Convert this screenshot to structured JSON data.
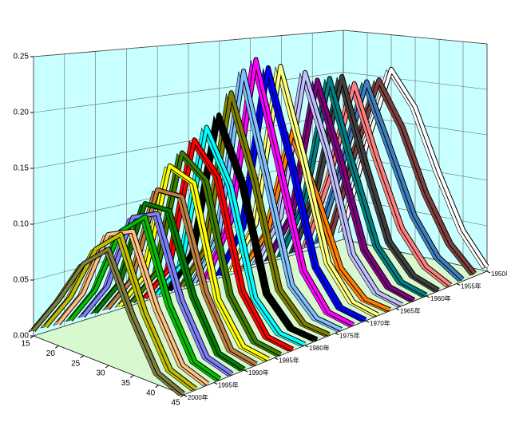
{
  "chart_data": {
    "type": "ribbon3d",
    "x": [
      15,
      20,
      25,
      30,
      35,
      40,
      45
    ],
    "xlim": [
      15,
      45
    ],
    "xticks": [
      15,
      20,
      25,
      30,
      35,
      40,
      45
    ],
    "ylim": [
      0,
      0.25
    ],
    "yticks": [
      {
        "value": 0,
        "label": "0.00"
      },
      {
        "value": 0.05,
        "label": "0.05"
      },
      {
        "value": 0.1,
        "label": "0.10"
      },
      {
        "value": 0.15,
        "label": "0.15"
      },
      {
        "value": 0.2,
        "label": "0.20"
      },
      {
        "value": 0.25,
        "label": "0.25"
      }
    ],
    "zlim": [
      1950,
      2000
    ],
    "zticks": [
      {
        "value": 1950,
        "label": "1950年"
      },
      {
        "value": 1955,
        "label": "1955年"
      },
      {
        "value": 1960,
        "label": "1960年"
      },
      {
        "value": 1965,
        "label": "1965年"
      },
      {
        "value": 1970,
        "label": "1970年"
      },
      {
        "value": 1975,
        "label": "1975年"
      },
      {
        "value": 1980,
        "label": "1980年"
      },
      {
        "value": 1985,
        "label": "1985年"
      },
      {
        "value": 1990,
        "label": "1990年"
      },
      {
        "value": 1995,
        "label": "1995年"
      },
      {
        "value": 2000,
        "label": "2000年"
      }
    ],
    "grid": true,
    "z": [
      1950,
      1952,
      1954,
      1956,
      1958,
      1960,
      1962,
      1964,
      1966,
      1968,
      1970,
      1972,
      1974,
      1976,
      1978,
      1980,
      1982,
      1984,
      1986,
      1988,
      1990,
      1992,
      1994,
      1996,
      1998,
      2000
    ],
    "series": [
      {
        "color": "#ffffff",
        "values": [
          0.01,
          0.12,
          0.21,
          0.17,
          0.1,
          0.04,
          0.005
        ]
      },
      {
        "color": "#804040",
        "values": [
          0.008,
          0.11,
          0.2,
          0.15,
          0.08,
          0.03,
          0.003
        ]
      },
      {
        "color": "#4080c0",
        "values": [
          0.005,
          0.1,
          0.2,
          0.13,
          0.06,
          0.02,
          0.002
        ]
      },
      {
        "color": "#ff8080",
        "values": [
          0.004,
          0.09,
          0.2,
          0.12,
          0.05,
          0.015,
          0.001
        ]
      },
      {
        "color": "#404040",
        "values": [
          0.003,
          0.08,
          0.21,
          0.12,
          0.04,
          0.01,
          0.001
        ]
      },
      {
        "color": "#008080",
        "values": [
          0.003,
          0.07,
          0.21,
          0.12,
          0.04,
          0.008,
          0.001
        ]
      },
      {
        "color": "#800080",
        "values": [
          0.003,
          0.06,
          0.21,
          0.13,
          0.04,
          0.008,
          0.001
        ]
      },
      {
        "color": "#c0c0ff",
        "values": [
          0.003,
          0.06,
          0.22,
          0.14,
          0.04,
          0.007,
          0.001
        ]
      },
      {
        "color": "#ff8000",
        "values": [
          0.002,
          0.05,
          0.16,
          0.1,
          0.03,
          0.005,
          0.001
        ]
      },
      {
        "color": "#ffff80",
        "values": [
          0.003,
          0.06,
          0.23,
          0.14,
          0.04,
          0.007,
          0.001
        ]
      },
      {
        "color": "#0000ff",
        "values": [
          0.003,
          0.06,
          0.23,
          0.14,
          0.04,
          0.006,
          0.001
        ]
      },
      {
        "color": "#ff00ff",
        "values": [
          0.003,
          0.07,
          0.24,
          0.14,
          0.04,
          0.006,
          0.001
        ]
      },
      {
        "color": "#80c0ff",
        "values": [
          0.003,
          0.06,
          0.23,
          0.13,
          0.03,
          0.005,
          0.001
        ]
      },
      {
        "color": "#808000",
        "values": [
          0.003,
          0.05,
          0.21,
          0.13,
          0.03,
          0.004,
          0.001
        ]
      },
      {
        "color": "#000000",
        "values": [
          0.003,
          0.05,
          0.19,
          0.13,
          0.03,
          0.004,
          0.001
        ]
      },
      {
        "color": "#00ffff",
        "values": [
          0.003,
          0.04,
          0.18,
          0.13,
          0.03,
          0.004,
          0.001
        ]
      },
      {
        "color": "#ff0000",
        "values": [
          0.003,
          0.04,
          0.17,
          0.14,
          0.04,
          0.005,
          0.001
        ]
      },
      {
        "color": "#408000",
        "values": [
          0.003,
          0.04,
          0.16,
          0.14,
          0.04,
          0.005,
          0.001
        ]
      },
      {
        "color": "#ffff00",
        "values": [
          0.003,
          0.04,
          0.15,
          0.14,
          0.04,
          0.005,
          0.001
        ]
      },
      {
        "color": "#c08040",
        "values": [
          0.004,
          0.04,
          0.13,
          0.13,
          0.05,
          0.006,
          0.001
        ]
      },
      {
        "color": "#008000",
        "values": [
          0.004,
          0.04,
          0.12,
          0.12,
          0.05,
          0.007,
          0.001
        ]
      },
      {
        "color": "#8080ff",
        "values": [
          0.004,
          0.04,
          0.11,
          0.12,
          0.05,
          0.008,
          0.001
        ]
      },
      {
        "color": "#00c000",
        "values": [
          0.004,
          0.04,
          0.1,
          0.12,
          0.05,
          0.008,
          0.001
        ]
      },
      {
        "color": "#ffc080",
        "values": [
          0.004,
          0.04,
          0.1,
          0.11,
          0.05,
          0.009,
          0.001
        ]
      },
      {
        "color": "#c0c000",
        "values": [
          0.005,
          0.04,
          0.09,
          0.11,
          0.05,
          0.009,
          0.001
        ]
      },
      {
        "color": "#808040",
        "values": [
          0.005,
          0.04,
          0.08,
          0.1,
          0.05,
          0.01,
          0.001
        ]
      }
    ]
  }
}
